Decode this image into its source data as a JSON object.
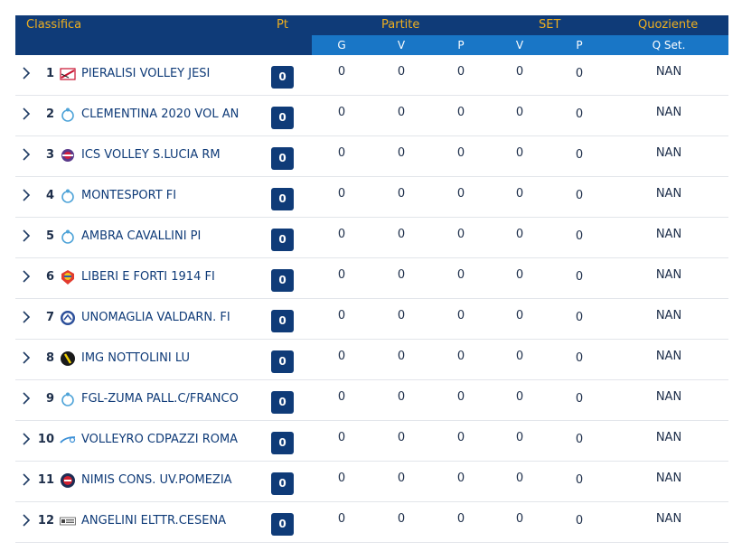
{
  "header": {
    "classifica": "Classifica",
    "pt": "Pt",
    "partite": "Partite",
    "set": "SET",
    "quoziente": "Quoziente",
    "g": "G",
    "v": "V",
    "p": "P",
    "set_v": "V",
    "set_p": "P",
    "qset": "Q Set."
  },
  "colors": {
    "navy": "#0f3b78",
    "blue": "#1976c6",
    "gold": "#f0b01e"
  },
  "rows": [
    {
      "pos": "1",
      "team": "PIERALISI VOLLEY JESI",
      "logo": "jesi-logo",
      "pt": "0",
      "g": "0",
      "v": "0",
      "p": "0",
      "sv": "0",
      "sp": "0",
      "q": "NAN"
    },
    {
      "pos": "2",
      "team": "CLEMENTINA 2020 VOL AN",
      "logo": "fipav-logo",
      "pt": "0",
      "g": "0",
      "v": "0",
      "p": "0",
      "sv": "0",
      "sp": "0",
      "q": "NAN"
    },
    {
      "pos": "3",
      "team": "ICS VOLLEY S.LUCIA RM",
      "logo": "ics-logo",
      "pt": "0",
      "g": "0",
      "v": "0",
      "p": "0",
      "sv": "0",
      "sp": "0",
      "q": "NAN"
    },
    {
      "pos": "4",
      "team": "MONTESPORT FI",
      "logo": "fipav-logo",
      "pt": "0",
      "g": "0",
      "v": "0",
      "p": "0",
      "sv": "0",
      "sp": "0",
      "q": "NAN"
    },
    {
      "pos": "5",
      "team": "AMBRA CAVALLINI PI",
      "logo": "fipav-logo",
      "pt": "0",
      "g": "0",
      "v": "0",
      "p": "0",
      "sv": "0",
      "sp": "0",
      "q": "NAN"
    },
    {
      "pos": "6",
      "team": "LIBERI E FORTI 1914 FI",
      "logo": "liberi-logo",
      "pt": "0",
      "g": "0",
      "v": "0",
      "p": "0",
      "sv": "0",
      "sp": "0",
      "q": "NAN"
    },
    {
      "pos": "7",
      "team": "UNOMAGLIA VALDARN. FI",
      "logo": "unomaglia-logo",
      "pt": "0",
      "g": "0",
      "v": "0",
      "p": "0",
      "sv": "0",
      "sp": "0",
      "q": "NAN"
    },
    {
      "pos": "8",
      "team": "IMG NOTTOLINI LU",
      "logo": "img-logo",
      "pt": "0",
      "g": "0",
      "v": "0",
      "p": "0",
      "sv": "0",
      "sp": "0",
      "q": "NAN"
    },
    {
      "pos": "9",
      "team": "FGL-ZUMA PALL.C/FRANCO",
      "logo": "fipav-logo",
      "pt": "0",
      "g": "0",
      "v": "0",
      "p": "0",
      "sv": "0",
      "sp": "0",
      "q": "NAN"
    },
    {
      "pos": "10",
      "team": "VOLLEYRO CDPAZZI ROMA",
      "logo": "volleyro-logo",
      "pt": "0",
      "g": "0",
      "v": "0",
      "p": "0",
      "sv": "0",
      "sp": "0",
      "q": "NAN"
    },
    {
      "pos": "11",
      "team": "NIMIS CONS. UV.POMEZIA",
      "logo": "nimis-logo",
      "pt": "0",
      "g": "0",
      "v": "0",
      "p": "0",
      "sv": "0",
      "sp": "0",
      "q": "NAN"
    },
    {
      "pos": "12",
      "team": "ANGELINI ELTTR.CESENA",
      "logo": "angelini-logo",
      "pt": "0",
      "g": "0",
      "v": "0",
      "p": "0",
      "sv": "0",
      "sp": "0",
      "q": "NAN"
    }
  ]
}
